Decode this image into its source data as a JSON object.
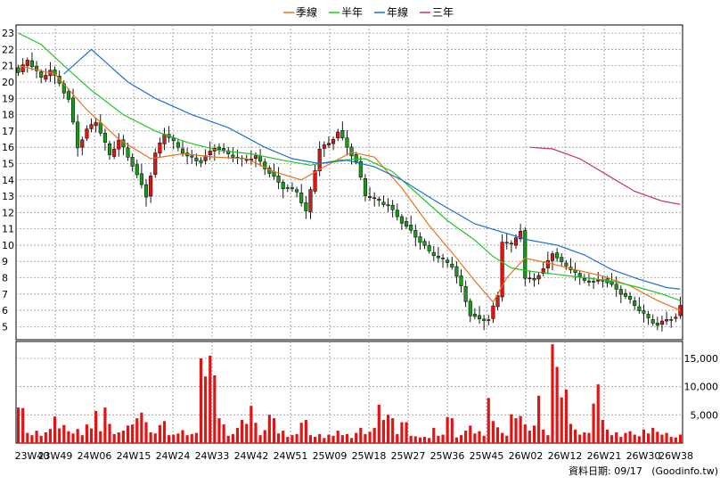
{
  "legend": [
    {
      "label": "季線",
      "color": "#e8731e"
    },
    {
      "label": "半年",
      "color": "#22c522"
    },
    {
      "label": "年線",
      "color": "#1f6fd6"
    },
    {
      "label": "三年",
      "color": "#c8336e"
    }
  ],
  "footer": {
    "date_label": "資料日期: 09/17",
    "source": "(Goodinfo.tw)"
  },
  "colors": {
    "up": "#e01414",
    "down": "#1a9a1a",
    "volume": "#e01414",
    "grid": "#9a9a9a",
    "frame": "#000000"
  },
  "chart_data": [
    {
      "type": "candlestick",
      "title": "",
      "legend_position": "top-center",
      "grid": true,
      "ylim": [
        4.2,
        23.5
      ],
      "y_ticks": [
        5,
        6,
        7,
        8,
        9,
        10,
        11,
        12,
        13,
        14,
        15,
        16,
        17,
        18,
        19,
        20,
        21,
        22,
        23
      ],
      "x_ticks": [
        "23W40",
        "23W49",
        "24W06",
        "24W15",
        "24W24",
        "24W33",
        "24W42",
        "24W51",
        "25W09",
        "25W18",
        "25W27",
        "25W36",
        "25W45",
        "26W02",
        "26W12",
        "26W21",
        "26W30",
        "26W38"
      ],
      "anchors": {
        "close": [
          [
            0,
            20.5
          ],
          [
            2,
            21.3
          ],
          [
            5,
            20.2
          ],
          [
            7,
            20.8
          ],
          [
            9,
            20.0
          ],
          [
            11,
            19.0
          ],
          [
            13,
            16.0
          ],
          [
            15,
            17.0
          ],
          [
            17,
            17.5
          ],
          [
            20,
            15.5
          ],
          [
            22,
            16.5
          ],
          [
            25,
            15.0
          ],
          [
            28,
            13.0
          ],
          [
            30,
            15.5
          ],
          [
            32,
            16.8
          ],
          [
            35,
            16.0
          ],
          [
            37,
            15.5
          ],
          [
            40,
            15.2
          ],
          [
            43,
            16.0
          ],
          [
            46,
            15.5
          ],
          [
            49,
            15.2
          ],
          [
            52,
            15.5
          ],
          [
            55,
            14.5
          ],
          [
            58,
            13.5
          ],
          [
            61,
            13.2
          ],
          [
            63,
            12.0
          ],
          [
            66,
            16.0
          ],
          [
            68,
            16.3
          ],
          [
            70,
            17.0
          ],
          [
            72,
            16.0
          ],
          [
            74,
            15.0
          ],
          [
            76,
            13.0
          ],
          [
            78,
            12.8
          ],
          [
            81,
            12.5
          ],
          [
            84,
            11.5
          ],
          [
            87,
            10.5
          ],
          [
            90,
            9.5
          ],
          [
            92,
            9.2
          ],
          [
            95,
            8.8
          ],
          [
            97,
            7.5
          ],
          [
            99,
            5.8
          ],
          [
            101,
            5.4
          ],
          [
            103,
            5.4
          ],
          [
            105,
            6.8
          ],
          [
            106,
            10.2
          ],
          [
            108,
            10.0
          ],
          [
            110,
            11.0
          ],
          [
            111,
            8.0
          ],
          [
            113,
            8.0
          ],
          [
            115,
            8.5
          ],
          [
            117,
            9.5
          ],
          [
            119,
            8.8
          ],
          [
            121,
            8.5
          ],
          [
            123,
            8.0
          ],
          [
            126,
            7.8
          ],
          [
            128,
            8.0
          ],
          [
            130,
            7.5
          ],
          [
            132,
            7.0
          ],
          [
            134,
            6.5
          ],
          [
            136,
            6.0
          ],
          [
            138,
            5.5
          ],
          [
            140,
            5.2
          ],
          [
            142,
            5.5
          ],
          [
            144,
            5.6
          ],
          [
            145,
            6.2
          ]
        ],
        "ma_quarter": [
          [
            0,
            21.0
          ],
          [
            8,
            20.5
          ],
          [
            15,
            18.3
          ],
          [
            22,
            16.5
          ],
          [
            29,
            15.3
          ],
          [
            36,
            15.6
          ],
          [
            43,
            15.4
          ],
          [
            50,
            15.3
          ],
          [
            56,
            14.5
          ],
          [
            62,
            14.0
          ],
          [
            67,
            14.8
          ],
          [
            73,
            15.7
          ],
          [
            78,
            15.4
          ],
          [
            84,
            13.5
          ],
          [
            90,
            11.2
          ],
          [
            96,
            9.2
          ],
          [
            100,
            7.8
          ],
          [
            104,
            6.5
          ],
          [
            107,
            8.0
          ],
          [
            111,
            9.2
          ],
          [
            116,
            8.9
          ],
          [
            122,
            8.5
          ],
          [
            128,
            8.1
          ],
          [
            134,
            7.5
          ],
          [
            140,
            6.6
          ],
          [
            145,
            6.0
          ]
        ],
        "ma_half": [
          [
            0,
            23.0
          ],
          [
            5,
            22.3
          ],
          [
            10,
            21.0
          ],
          [
            16,
            19.5
          ],
          [
            23,
            18.0
          ],
          [
            30,
            17.0
          ],
          [
            37,
            16.3
          ],
          [
            44,
            15.8
          ],
          [
            51,
            15.6
          ],
          [
            58,
            15.2
          ],
          [
            64,
            14.9
          ],
          [
            70,
            15.2
          ],
          [
            76,
            15.3
          ],
          [
            82,
            14.5
          ],
          [
            88,
            13.0
          ],
          [
            94,
            11.5
          ],
          [
            100,
            10.3
          ],
          [
            104,
            9.3
          ],
          [
            108,
            8.6
          ],
          [
            112,
            8.4
          ],
          [
            118,
            8.2
          ],
          [
            124,
            8.0
          ],
          [
            130,
            7.8
          ],
          [
            136,
            7.4
          ],
          [
            141,
            7.0
          ],
          [
            145,
            6.6
          ]
        ],
        "ma_year": [
          [
            10,
            20.5
          ],
          [
            14,
            21.5
          ],
          [
            16,
            22.0
          ],
          [
            18,
            21.5
          ],
          [
            24,
            20.0
          ],
          [
            30,
            19.0
          ],
          [
            38,
            18.0
          ],
          [
            46,
            17.2
          ],
          [
            54,
            16.0
          ],
          [
            60,
            15.3
          ],
          [
            66,
            15.0
          ],
          [
            72,
            15.2
          ],
          [
            78,
            14.8
          ],
          [
            84,
            14.0
          ],
          [
            92,
            12.6
          ],
          [
            100,
            11.3
          ],
          [
            106,
            10.8
          ],
          [
            112,
            10.3
          ],
          [
            118,
            10.0
          ],
          [
            124,
            9.4
          ],
          [
            130,
            8.5
          ],
          [
            136,
            7.9
          ],
          [
            142,
            7.4
          ],
          [
            145,
            7.3
          ]
        ],
        "ma_3year": [
          [
            112,
            16.0
          ],
          [
            117,
            15.9
          ],
          [
            123,
            15.3
          ],
          [
            129,
            14.3
          ],
          [
            135,
            13.3
          ],
          [
            141,
            12.7
          ],
          [
            145,
            12.5
          ]
        ]
      }
    },
    {
      "type": "bar",
      "title": "",
      "ylim": [
        0,
        18000
      ],
      "y_ticks": [
        5000,
        10000,
        15000
      ],
      "y_tick_labels": [
        "5,000",
        "10,000",
        "15,000"
      ],
      "grid": true,
      "series": [
        {
          "values": [
            6300,
            6200,
            1800,
            1400,
            2200,
            1300,
            1900,
            2500,
            4700,
            2600,
            3200,
            2100,
            1700,
            2500,
            1400,
            3300,
            2600,
            5700,
            2100,
            6300,
            3400,
            1600,
            1900,
            2200,
            3100,
            3300,
            4400,
            5400,
            3700,
            1900,
            1700,
            3200,
            3900,
            1400,
            1500,
            1700,
            2300,
            1400,
            1600,
            1800,
            15000,
            11800,
            15500,
            12000,
            4400,
            3300,
            1300,
            1600,
            2700,
            4100,
            3400,
            6600,
            3600,
            1400,
            2300,
            5000,
            4400,
            1700,
            2200,
            1100,
            1400,
            1600,
            3600,
            4100,
            1400,
            1100,
            1600,
            900,
            1500,
            1300,
            2200,
            1400,
            1600,
            900,
            1800,
            2700,
            1600,
            2000,
            2700,
            6800,
            4100,
            5000,
            4400,
            1600,
            3700,
            3700,
            1300,
            1200,
            1000,
            1100,
            900,
            2700,
            1300,
            1500,
            4600,
            4400,
            1000,
            1400,
            2200,
            3100,
            1700,
            2100,
            1300,
            8000,
            3900,
            2800,
            1800,
            1300,
            5100,
            4400,
            4800,
            3300,
            2200,
            3100,
            8400,
            2400,
            1400,
            17500,
            13500,
            8100,
            9500,
            3400,
            2400,
            1500,
            1900,
            1800,
            7000,
            10400,
            4100,
            2400,
            1400,
            1900,
            1100,
            1800,
            2100,
            1500,
            1200,
            2400,
            1700,
            2700,
            2000,
            1500,
            1800,
            1100,
            1000,
            1500
          ]
        }
      ]
    }
  ]
}
